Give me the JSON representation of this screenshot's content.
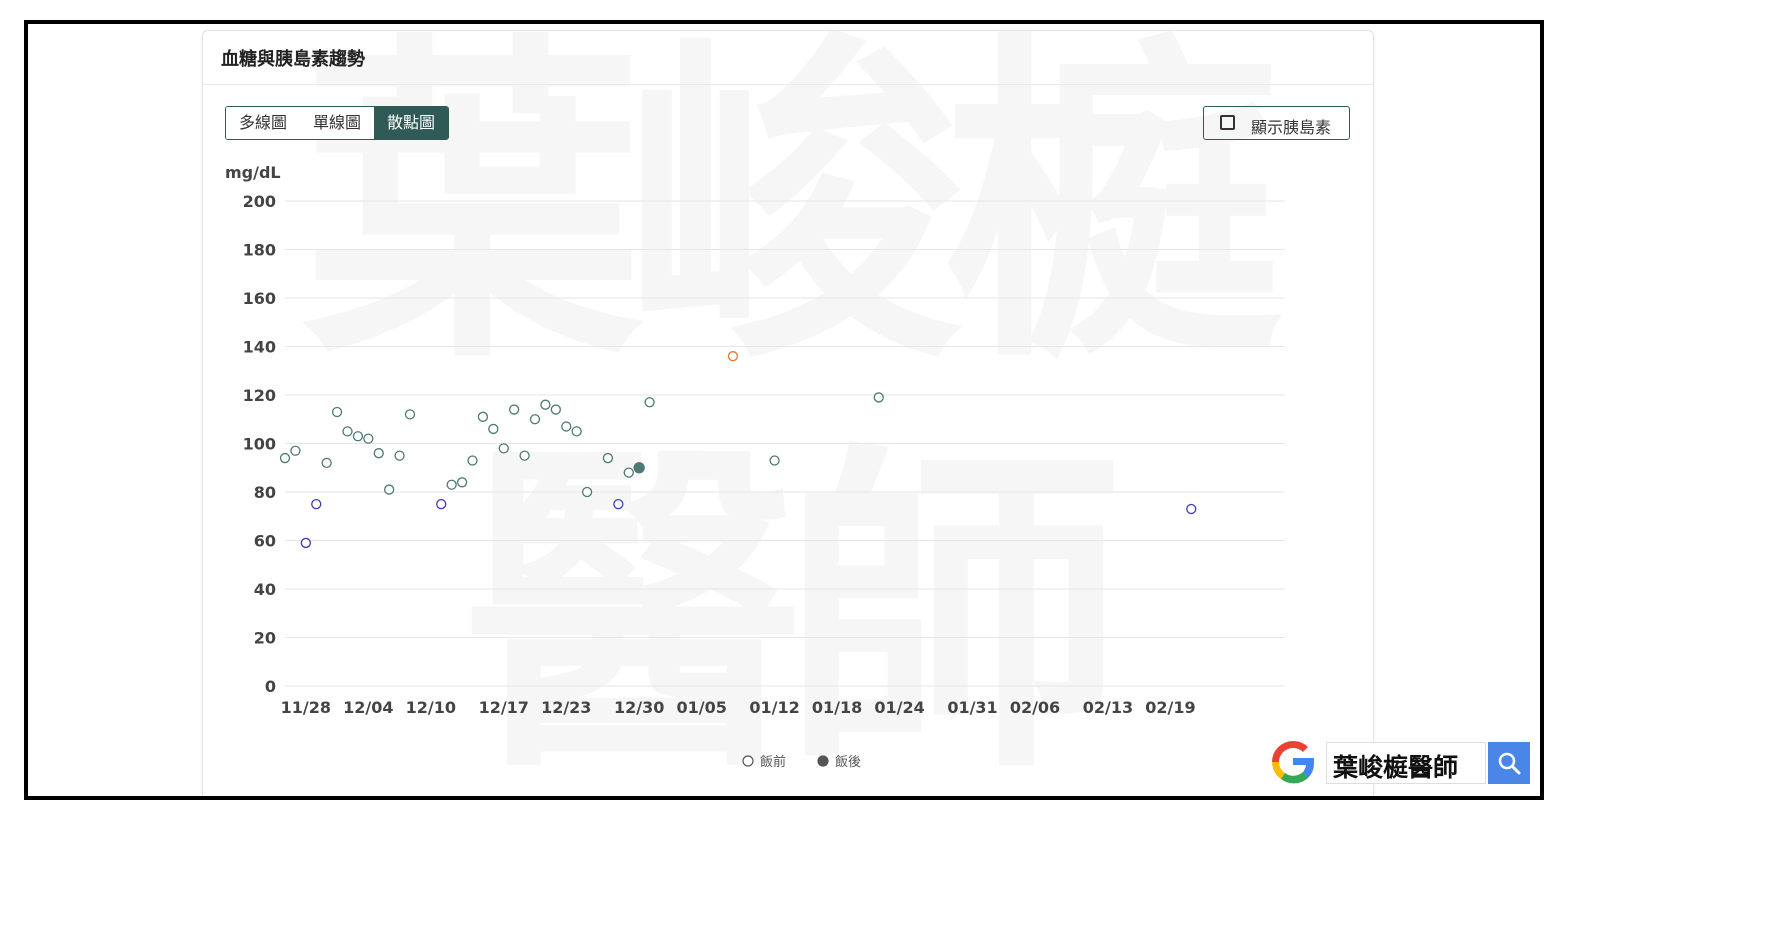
{
  "card": {
    "title": "血糖與胰島素趨勢"
  },
  "watermark": {
    "line1": "葉峻榳",
    "line2": "醫師"
  },
  "view_buttons": [
    {
      "label": "多線圖",
      "active": false
    },
    {
      "label": "單線圖",
      "active": false
    },
    {
      "label": "散點圖",
      "active": true
    }
  ],
  "insulin_toggle": {
    "label": "顯示胰島素",
    "checked": false
  },
  "colors": {
    "accent": "#2f5a55",
    "point_green": "#4d7a72",
    "point_blue": "#3b3bb3",
    "point_orange": "#e07b2e",
    "grid": "#e6e6e6",
    "axis_text": "#444444"
  },
  "chart_data": {
    "type": "scatter",
    "title": "",
    "xlabel": "",
    "ylabel": "mg/dL",
    "ylim": [
      0,
      200
    ],
    "yticks": [
      0,
      20,
      40,
      60,
      80,
      100,
      120,
      140,
      160,
      180,
      200
    ],
    "x_tick_labels": [
      "11/28",
      "12/04",
      "12/10",
      "12/17",
      "12/23",
      "12/30",
      "01/05",
      "01/12",
      "01/18",
      "01/24",
      "01/31",
      "02/06",
      "02/13",
      "02/19"
    ],
    "xlim": [
      "11/26",
      "03/01"
    ],
    "grid": true,
    "legend_position": "bottom-center",
    "series": [
      {
        "name": "飯前",
        "marker": "hollow-circle",
        "points": [
          {
            "x": "11/26",
            "y": 94,
            "color": "green"
          },
          {
            "x": "11/27",
            "y": 97,
            "color": "green"
          },
          {
            "x": "11/28",
            "y": 59,
            "color": "blue"
          },
          {
            "x": "11/29",
            "y": 75,
            "color": "blue"
          },
          {
            "x": "11/30",
            "y": 92,
            "color": "green"
          },
          {
            "x": "12/01",
            "y": 113,
            "color": "green"
          },
          {
            "x": "12/02",
            "y": 105,
            "color": "green"
          },
          {
            "x": "12/03",
            "y": 103,
            "color": "green"
          },
          {
            "x": "12/04",
            "y": 102,
            "color": "green"
          },
          {
            "x": "12/05",
            "y": 96,
            "color": "green"
          },
          {
            "x": "12/06",
            "y": 81,
            "color": "green"
          },
          {
            "x": "12/07",
            "y": 95,
            "color": "green"
          },
          {
            "x": "12/08",
            "y": 112,
            "color": "green"
          },
          {
            "x": "12/11",
            "y": 75,
            "color": "blue"
          },
          {
            "x": "12/12",
            "y": 83,
            "color": "green"
          },
          {
            "x": "12/13",
            "y": 84,
            "color": "green"
          },
          {
            "x": "12/14",
            "y": 93,
            "color": "green"
          },
          {
            "x": "12/15",
            "y": 111,
            "color": "green"
          },
          {
            "x": "12/16",
            "y": 106,
            "color": "green"
          },
          {
            "x": "12/17",
            "y": 98,
            "color": "green"
          },
          {
            "x": "12/18",
            "y": 114,
            "color": "green"
          },
          {
            "x": "12/19",
            "y": 95,
            "color": "green"
          },
          {
            "x": "12/20",
            "y": 110,
            "color": "green"
          },
          {
            "x": "12/21",
            "y": 116,
            "color": "green"
          },
          {
            "x": "12/22",
            "y": 114,
            "color": "green"
          },
          {
            "x": "12/23",
            "y": 107,
            "color": "green"
          },
          {
            "x": "12/24",
            "y": 105,
            "color": "green"
          },
          {
            "x": "12/25",
            "y": 80,
            "color": "green"
          },
          {
            "x": "12/27",
            "y": 94,
            "color": "green"
          },
          {
            "x": "12/28",
            "y": 75,
            "color": "blue"
          },
          {
            "x": "12/29",
            "y": 88,
            "color": "green"
          },
          {
            "x": "12/31",
            "y": 117,
            "color": "green"
          },
          {
            "x": "01/08",
            "y": 136,
            "color": "orange"
          },
          {
            "x": "01/12",
            "y": 93,
            "color": "green"
          },
          {
            "x": "01/22",
            "y": 119,
            "color": "green"
          },
          {
            "x": "02/21",
            "y": 73,
            "color": "blue"
          }
        ]
      },
      {
        "name": "飯後",
        "marker": "filled-circle",
        "points": [
          {
            "x": "12/30",
            "y": 90,
            "color": "green"
          }
        ]
      }
    ]
  },
  "google_badge": {
    "text": "葉峻榳醫師",
    "search_icon": "search-icon",
    "logo": "google-g-logo"
  }
}
